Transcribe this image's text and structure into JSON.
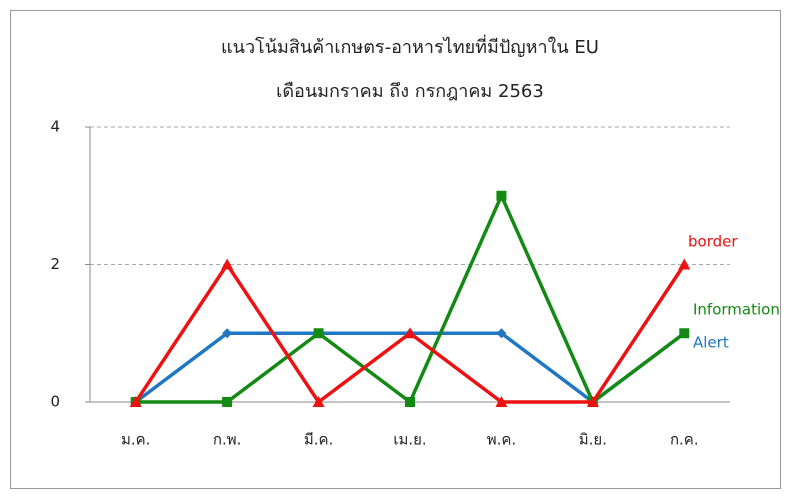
{
  "chart_data": {
    "type": "line",
    "title": "แนวโน้มสินค้าเกษตร-อาหารไทยที่มีปัญหาใน EU",
    "subtitle": "เดือนมกราคม ถึง กรกฎาคม 2563",
    "categories": [
      "ม.ค.",
      "ก.พ.",
      "มี.ค.",
      "เม.ย.",
      "พ.ค.",
      "มิ.ย.",
      "ก.ค."
    ],
    "series": [
      {
        "name": "Alert",
        "color": "#1f77c4",
        "marker": "diamond",
        "values": [
          0,
          1,
          1,
          1,
          1,
          0,
          1
        ]
      },
      {
        "name": "Information",
        "color": "#138a13",
        "marker": "square",
        "values": [
          0,
          0,
          1,
          0,
          3,
          0,
          1
        ]
      },
      {
        "name": "border",
        "color": "#ee1111",
        "marker": "triangle",
        "values": [
          0,
          2,
          0,
          1,
          0,
          0,
          2
        ]
      }
    ],
    "ylim": [
      0,
      4
    ],
    "yticks": [
      0,
      2,
      4
    ],
    "grid": true
  }
}
